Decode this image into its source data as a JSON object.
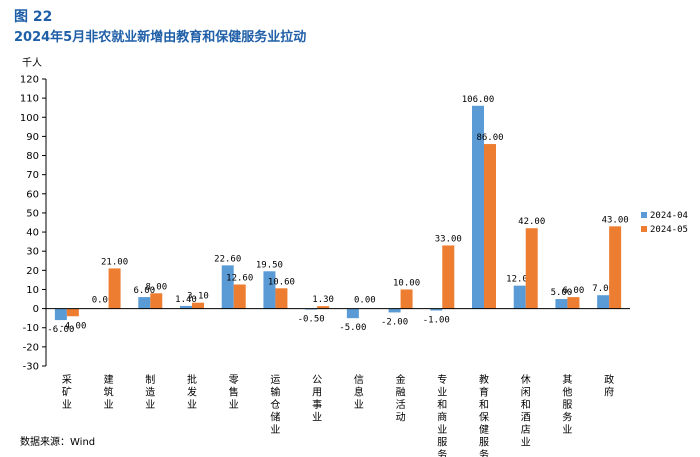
{
  "figure_number": "图 22",
  "figure_title": "2024年5月非农就业新增由教育和保健服务业拉动",
  "source": "数据来源：Wind",
  "chart_data": {
    "type": "bar",
    "title": "2024年5月非农就业新增由教育和保健服务业拉动",
    "ylabel": "千人",
    "xlabel": "",
    "ylim": [
      -30,
      120
    ],
    "yticks": [
      -30,
      -20,
      -10,
      0,
      10,
      20,
      30,
      40,
      50,
      60,
      70,
      80,
      90,
      100,
      110,
      120
    ],
    "grid": false,
    "legend_position": "right",
    "categories": [
      "采矿业",
      "建筑业",
      "制造业",
      "批发业",
      "零售业",
      "运输仓储业",
      "公用事业",
      "信息业",
      "金融活动",
      "专业和商业服务",
      "教育和保健服务",
      "休闲和酒店业",
      "其他服务业",
      "政府"
    ],
    "series": [
      {
        "name": "2024-04",
        "color": "#5b9bd5",
        "values": [
          -6.0,
          0.0,
          6.0,
          1.4,
          22.6,
          19.5,
          -0.5,
          -5.0,
          -2.0,
          -1.0,
          106.0,
          12.0,
          5.0,
          7.0
        ],
        "labels": [
          "-6.00",
          "0.00",
          "6.00",
          "1.40",
          "22.60",
          "19.50",
          "-0.50",
          "-5.00",
          "-2.00",
          "-1.00",
          "106.00",
          "12.00",
          "5.00",
          "7.00"
        ]
      },
      {
        "name": "2024-05",
        "color": "#ed7d31",
        "values": [
          -4.0,
          21.0,
          8.0,
          3.1,
          12.6,
          10.6,
          1.3,
          0.0,
          10.0,
          33.0,
          86.0,
          42.0,
          6.0,
          43.0
        ],
        "labels": [
          "-4.00",
          "21.00",
          "8.00",
          "3.10",
          "12.60",
          "10.60",
          "1.30",
          "0.00",
          "10.00",
          "33.00",
          "86.00",
          "42.00",
          "6.00",
          "43.00"
        ]
      }
    ]
  }
}
